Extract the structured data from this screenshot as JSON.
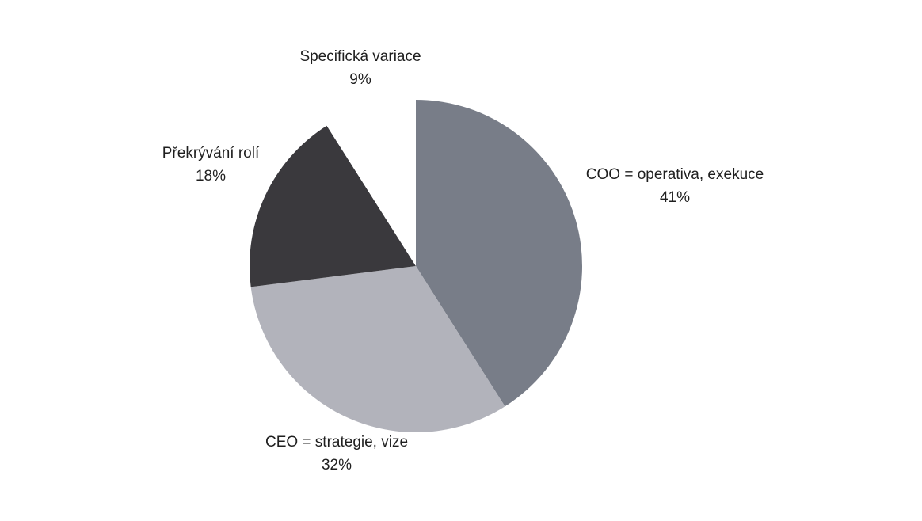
{
  "chart_data": {
    "type": "pie",
    "title": "",
    "start_angle_deg": 0,
    "direction": "clockwise",
    "slices": [
      {
        "label": "COO = operativa, exekuce",
        "value": 41,
        "value_label": "41%",
        "color": "#787d88"
      },
      {
        "label": "CEO = strategie, vize",
        "value": 32,
        "value_label": "32%",
        "color": "#b2b3bb"
      },
      {
        "label": "Překrývání rolí",
        "value": 18,
        "value_label": "18%",
        "color": "#3a393d"
      },
      {
        "label": "Specifická variace",
        "value": 9,
        "value_label": "9%",
        "color": "#ffffff"
      }
    ]
  }
}
